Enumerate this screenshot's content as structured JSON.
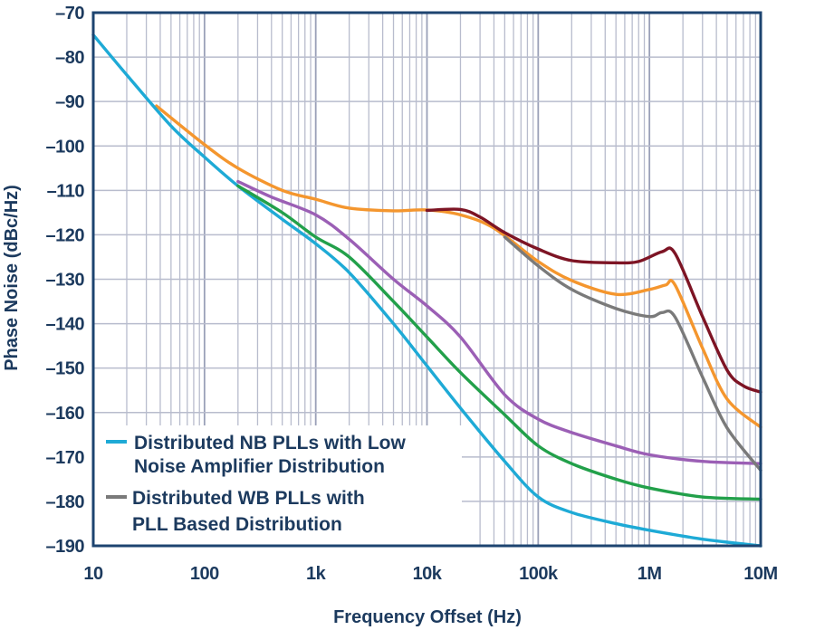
{
  "chart_data": {
    "type": "line",
    "title": "",
    "xlabel": "Frequency Offset (Hz)",
    "ylabel": "Phase Noise (dBc/Hz)",
    "xscale": "log",
    "xlim": [
      10,
      10000000
    ],
    "ylim": [
      -190,
      -70
    ],
    "grid": true,
    "x_ticks": [
      {
        "value": 10,
        "label": "10"
      },
      {
        "value": 100,
        "label": "100"
      },
      {
        "value": 1000,
        "label": "1k"
      },
      {
        "value": 10000,
        "label": "10k"
      },
      {
        "value": 100000,
        "label": "100k"
      },
      {
        "value": 1000000,
        "label": "1M"
      },
      {
        "value": 10000000,
        "label": "10M"
      }
    ],
    "y_ticks": [
      {
        "value": -70,
        "label": "–70"
      },
      {
        "value": -80,
        "label": "–80"
      },
      {
        "value": -90,
        "label": "–90"
      },
      {
        "value": -100,
        "label": "–100"
      },
      {
        "value": -110,
        "label": "–110"
      },
      {
        "value": -120,
        "label": "–120"
      },
      {
        "value": -130,
        "label": "–130"
      },
      {
        "value": -140,
        "label": "–140"
      },
      {
        "value": -150,
        "label": "–150"
      },
      {
        "value": -160,
        "label": "–160"
      },
      {
        "value": -170,
        "label": "–170"
      },
      {
        "value": -180,
        "label": "–180"
      },
      {
        "value": -190,
        "label": "–190"
      }
    ],
    "legend_position": "bottom-left",
    "legend": [
      {
        "lines": [
          "Distributed NB PLLs with Low",
          "Noise Amplifier Distribution"
        ],
        "color": "#1eaad6"
      },
      {
        "lines": [
          "Distributed WB PLLs with",
          "PLL Based Distribution"
        ],
        "color": "#7a7a7a"
      }
    ],
    "series": [
      {
        "color": "#f4962e",
        "x": [
          37,
          100,
          200,
          500,
          1000,
          2000,
          5000,
          10000,
          20000,
          40000,
          100000,
          200000,
          500000,
          1000000,
          1400000,
          1700000,
          3000000,
          5000000,
          10000000
        ],
        "y": [
          -91,
          -99.7,
          -105,
          -110,
          -112,
          -114,
          -114.6,
          -114.4,
          -115.5,
          -118.5,
          -126,
          -130.3,
          -133.4,
          -132.3,
          -131.3,
          -131.3,
          -145.5,
          -157,
          -163.3
        ]
      },
      {
        "color": "#1eaad6",
        "x": [
          10,
          20,
          50,
          100,
          200,
          500,
          1000,
          2000,
          5000,
          10000,
          20000,
          50000,
          100000,
          200000,
          500000,
          1000000,
          3000000,
          10000000
        ],
        "y": [
          -75,
          -84,
          -95.5,
          -102.5,
          -109,
          -116.5,
          -122,
          -128.5,
          -140,
          -149.5,
          -159,
          -171,
          -179,
          -182.5,
          -185,
          -186.5,
          -188.5,
          -190
        ]
      },
      {
        "color": "#22a04a",
        "x": [
          200,
          500,
          1000,
          2000,
          5000,
          10000,
          20000,
          50000,
          100000,
          200000,
          500000,
          1000000,
          3000000,
          10000000
        ],
        "y": [
          -109,
          -115,
          -120.5,
          -125,
          -135,
          -143,
          -151,
          -160.5,
          -167.5,
          -171.5,
          -175,
          -177,
          -179,
          -179.5
        ]
      },
      {
        "color": "#9b5fb5",
        "x": [
          200,
          400,
          1000,
          2000,
          5000,
          10000,
          20000,
          50000,
          100000,
          200000,
          500000,
          1000000,
          3000000,
          10000000
        ],
        "y": [
          -108,
          -111.5,
          -115.5,
          -121,
          -130,
          -136,
          -143,
          -156,
          -161.5,
          -164.5,
          -167.5,
          -169.5,
          -171,
          -171.5
        ]
      },
      {
        "color": "#7a7a7a",
        "x": [
          50000,
          100000,
          200000,
          500000,
          1000000,
          1300000,
          1700000,
          3000000,
          5000000,
          10000000
        ],
        "y": [
          -120.5,
          -127,
          -132.3,
          -136.6,
          -138.4,
          -137.5,
          -138.5,
          -152,
          -163.5,
          -173
        ]
      },
      {
        "color": "#7d1424",
        "x": [
          10000,
          20000,
          30000,
          50000,
          100000,
          200000,
          500000,
          800000,
          1300000,
          1700000,
          3000000,
          5000000,
          7000000,
          10000000
        ],
        "y": [
          -114.5,
          -114.3,
          -116,
          -119.5,
          -123.2,
          -125.8,
          -126.3,
          -126,
          -123.8,
          -124.2,
          -138.4,
          -150.5,
          -154,
          -155.4
        ]
      }
    ]
  }
}
